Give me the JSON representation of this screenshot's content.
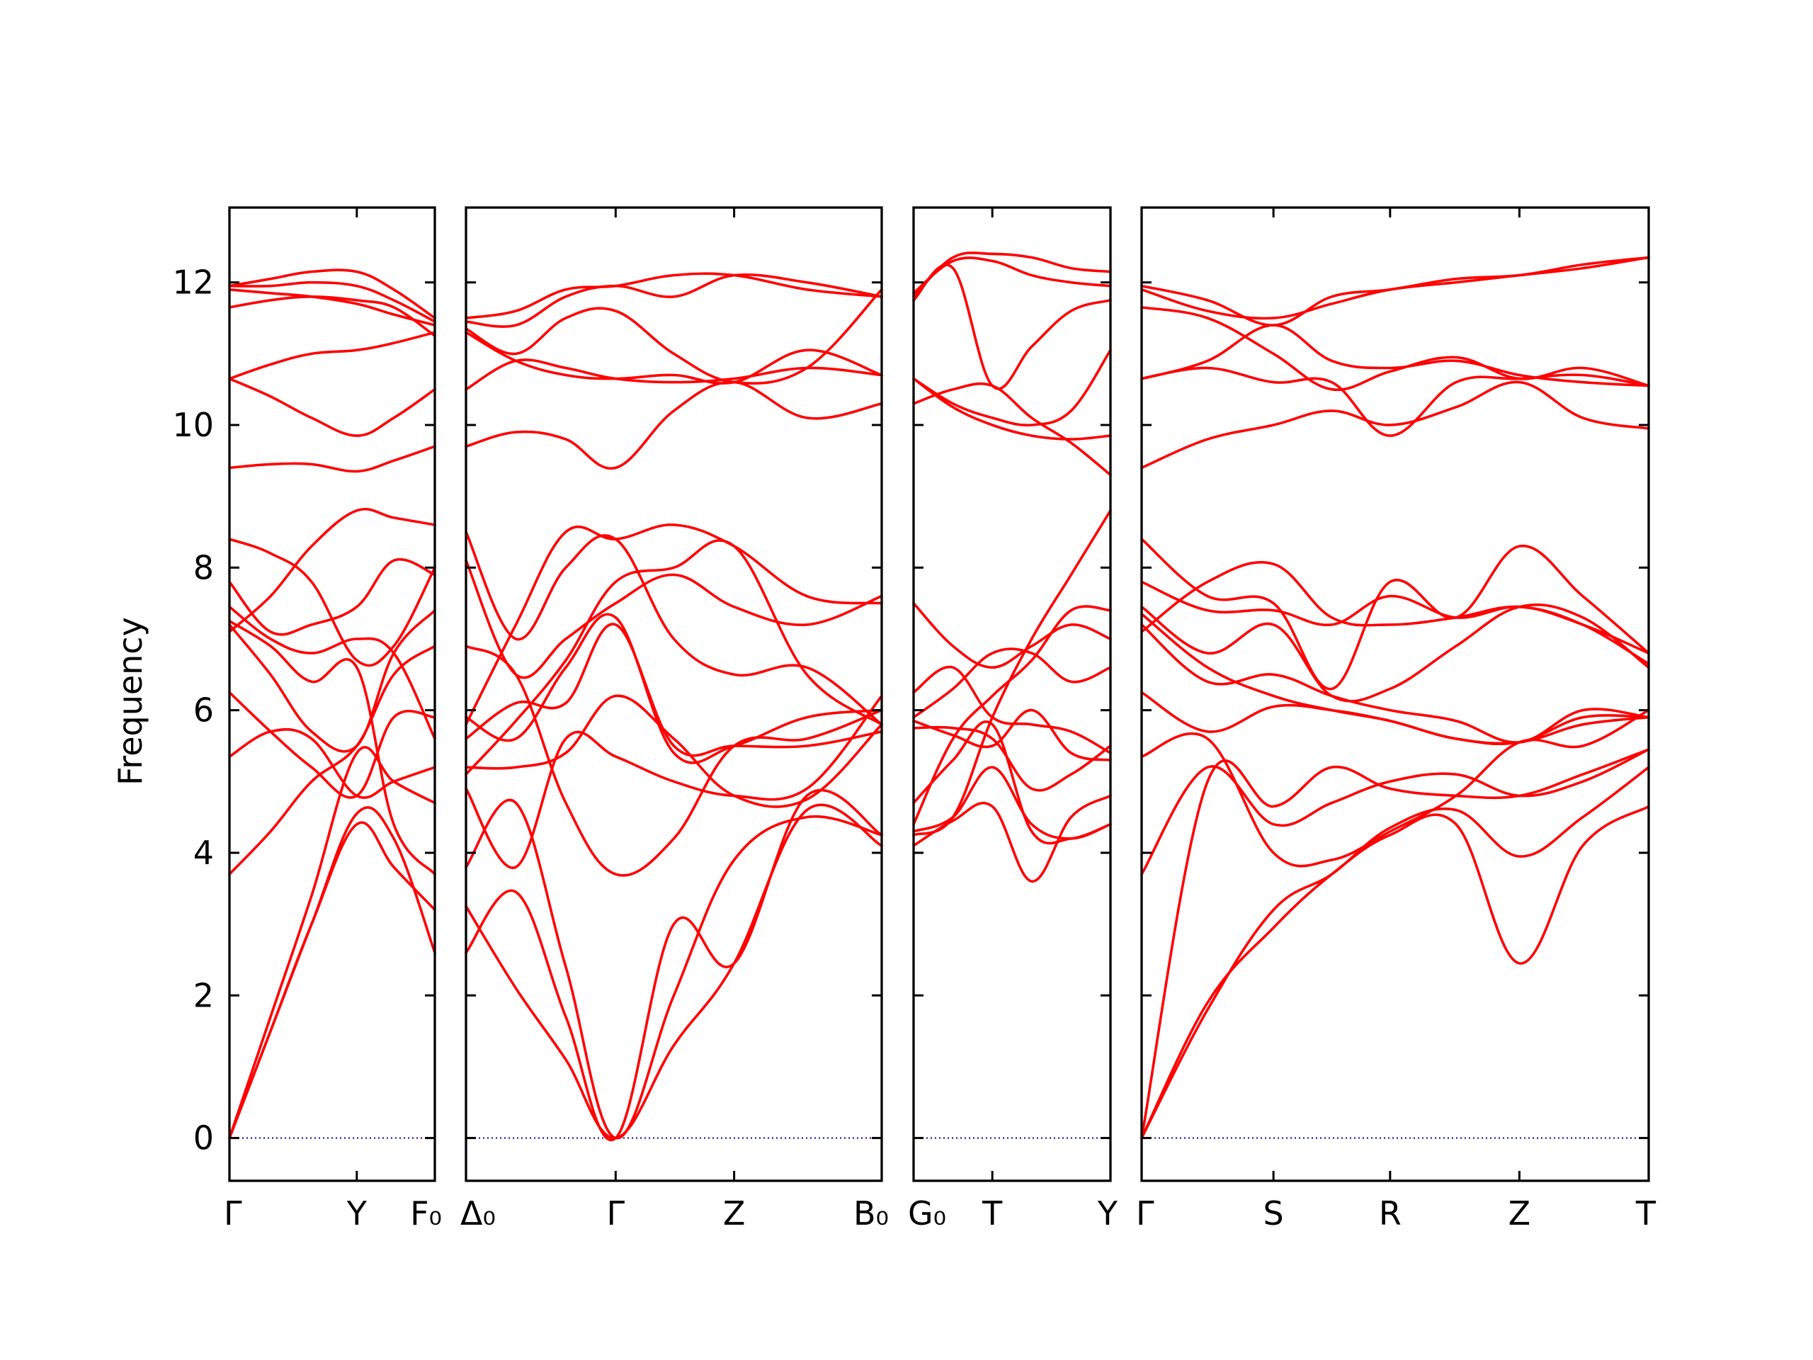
{
  "chart_data": {
    "type": "line",
    "ylabel": "Frequency",
    "ylim": [
      -0.6,
      13.05
    ],
    "yticks": [
      0,
      2,
      4,
      6,
      8,
      10,
      12
    ],
    "band_color": "#ff0000",
    "zero_line_color": "#0000cc",
    "panels": [
      {
        "xrange": [
          0,
          1
        ],
        "points": [
          {
            "x": 0,
            "label": "Γ"
          },
          {
            "x": 0.62,
            "label": "Y"
          },
          {
            "x": 1,
            "label": "F₀"
          }
        ],
        "x": [
          0,
          0.2,
          0.4,
          0.62,
          0.8,
          1.0
        ],
        "bands": [
          [
            0,
            1.5,
            3.0,
            4.55,
            4.2,
            2.6
          ],
          [
            0,
            1.5,
            3.0,
            4.4,
            3.8,
            3.2
          ],
          [
            0,
            1.7,
            3.4,
            5.4,
            5.0,
            4.7
          ],
          [
            3.7,
            4.3,
            5.0,
            5.5,
            6.5,
            6.9
          ],
          [
            5.35,
            5.7,
            5.6,
            4.8,
            5.0,
            5.2
          ],
          [
            6.25,
            5.7,
            5.2,
            4.8,
            5.9,
            5.9
          ],
          [
            7.2,
            6.5,
            5.7,
            5.5,
            6.8,
            7.4
          ],
          [
            7.25,
            6.9,
            6.4,
            6.6,
            4.4,
            3.7
          ],
          [
            7.45,
            7.0,
            6.8,
            7.0,
            6.8,
            5.6
          ],
          [
            7.8,
            7.1,
            7.2,
            7.45,
            8.1,
            7.9
          ],
          [
            8.4,
            8.2,
            7.8,
            6.7,
            6.9,
            8.0
          ],
          [
            7.1,
            7.6,
            8.3,
            8.8,
            8.7,
            8.6
          ],
          [
            9.4,
            9.45,
            9.45,
            9.35,
            9.5,
            9.7
          ],
          [
            10.65,
            10.4,
            10.1,
            9.85,
            10.1,
            10.5
          ],
          [
            10.65,
            10.85,
            11.0,
            11.05,
            11.15,
            11.3
          ],
          [
            11.65,
            11.75,
            11.8,
            11.75,
            11.65,
            11.25
          ],
          [
            11.9,
            11.85,
            11.8,
            11.7,
            11.55,
            11.4
          ],
          [
            11.95,
            11.95,
            12.0,
            11.95,
            11.75,
            11.45
          ],
          [
            11.95,
            12.05,
            12.15,
            12.15,
            11.9,
            11.5
          ]
        ]
      },
      {
        "xrange": [
          0,
          1
        ],
        "points": [
          {
            "x": 0,
            "label": "Δ₀"
          },
          {
            "x": 0.36,
            "label": "Γ"
          },
          {
            "x": 0.645,
            "label": "Z"
          },
          {
            "x": 1,
            "label": "B₀"
          }
        ],
        "x": [
          0,
          0.12,
          0.24,
          0.36,
          0.5,
          0.645,
          0.82,
          1.0
        ],
        "bands": [
          [
            2.6,
            3.45,
            1.7,
            0,
            3.0,
            2.45,
            4.8,
            4.25
          ],
          [
            3.25,
            2.1,
            1.1,
            0,
            1.3,
            2.45,
            4.6,
            4.1
          ],
          [
            3.8,
            4.7,
            2.4,
            0,
            2.0,
            3.9,
            4.5,
            4.25
          ],
          [
            4.9,
            3.8,
            5.6,
            5.35,
            5.0,
            4.8,
            4.9,
            6.2
          ],
          [
            5.2,
            5.2,
            5.4,
            6.2,
            5.6,
            4.8,
            4.75,
            5.8
          ],
          [
            5.6,
            6.1,
            6.1,
            7.2,
            5.5,
            5.5,
            5.5,
            5.7
          ],
          [
            5.9,
            5.6,
            6.6,
            7.3,
            5.4,
            5.5,
            5.9,
            6.0
          ],
          [
            6.9,
            6.5,
            4.7,
            3.7,
            4.2,
            5.5,
            5.6,
            6.0
          ],
          [
            8.1,
            6.5,
            7.0,
            7.5,
            7.9,
            7.45,
            7.2,
            7.6
          ],
          [
            8.5,
            7.0,
            8.0,
            8.4,
            7.0,
            6.5,
            6.6,
            5.8
          ],
          [
            5.1,
            5.85,
            6.7,
            7.8,
            8.0,
            8.3,
            6.5,
            5.8
          ],
          [
            5.8,
            7.2,
            8.5,
            8.4,
            8.6,
            8.3,
            7.6,
            7.5
          ],
          [
            9.7,
            9.9,
            9.8,
            9.4,
            10.2,
            10.6,
            10.1,
            10.3
          ],
          [
            10.5,
            10.9,
            10.8,
            10.65,
            10.6,
            10.65,
            10.8,
            10.7
          ],
          [
            11.3,
            10.9,
            10.7,
            10.65,
            10.7,
            10.6,
            11.05,
            10.7
          ],
          [
            11.35,
            11.0,
            11.5,
            11.6,
            11.0,
            10.6,
            10.8,
            11.9
          ],
          [
            11.45,
            11.4,
            11.8,
            11.95,
            11.8,
            12.1,
            12.0,
            11.8
          ],
          [
            11.5,
            11.6,
            11.9,
            11.95,
            12.1,
            12.1,
            11.9,
            11.8
          ]
        ]
      },
      {
        "xrange": [
          0,
          1
        ],
        "points": [
          {
            "x": 0,
            "label": "G₀"
          },
          {
            "x": 0.4,
            "label": "T"
          },
          {
            "x": 1,
            "label": "Y"
          }
        ],
        "x": [
          0,
          0.2,
          0.4,
          0.6,
          0.8,
          1.0
        ],
        "bands": [
          [
            4.1,
            4.45,
            4.65,
            3.6,
            4.5,
            4.8
          ],
          [
            4.3,
            4.5,
            5.2,
            4.4,
            4.2,
            4.4
          ],
          [
            4.7,
            5.3,
            5.8,
            4.3,
            4.2,
            4.4
          ],
          [
            5.75,
            5.75,
            5.6,
            4.9,
            5.1,
            5.5
          ],
          [
            5.85,
            5.65,
            5.5,
            6.0,
            5.4,
            5.3
          ],
          [
            6.25,
            6.6,
            5.9,
            5.8,
            5.7,
            5.4
          ],
          [
            5.9,
            6.3,
            6.8,
            6.8,
            6.4,
            6.6
          ],
          [
            7.5,
            6.9,
            6.6,
            6.9,
            7.2,
            7.0
          ],
          [
            4.4,
            5.6,
            6.2,
            6.7,
            7.4,
            7.4
          ],
          [
            4.25,
            4.5,
            5.9,
            7.0,
            7.9,
            8.8
          ],
          [
            10.3,
            10.5,
            10.55,
            10.1,
            9.75,
            9.3
          ],
          [
            10.65,
            10.25,
            10.0,
            9.85,
            9.8,
            9.85
          ],
          [
            10.65,
            10.3,
            10.1,
            10.0,
            10.2,
            11.05
          ],
          [
            11.75,
            12.2,
            10.55,
            11.1,
            11.6,
            11.75
          ],
          [
            11.85,
            12.3,
            12.3,
            12.1,
            12.0,
            11.95
          ],
          [
            11.8,
            12.35,
            12.4,
            12.35,
            12.2,
            12.15
          ]
        ]
      },
      {
        "xrange": [
          0,
          1
        ],
        "points": [
          {
            "x": 0,
            "label": "Γ"
          },
          {
            "x": 0.26,
            "label": "S"
          },
          {
            "x": 0.49,
            "label": "R"
          },
          {
            "x": 0.745,
            "label": "Z"
          },
          {
            "x": 1,
            "label": "T"
          }
        ],
        "x": [
          0,
          0.13,
          0.26,
          0.375,
          0.49,
          0.62,
          0.745,
          0.87,
          1.0
        ],
        "bands": [
          [
            0,
            1.9,
            2.95,
            3.7,
            4.25,
            4.4,
            2.45,
            4.1,
            4.65
          ],
          [
            0,
            1.8,
            3.2,
            3.7,
            4.35,
            4.6,
            3.95,
            4.5,
            5.2
          ],
          [
            0,
            5.0,
            4.65,
            5.2,
            4.9,
            4.8,
            4.8,
            5.1,
            5.45
          ],
          [
            3.7,
            5.2,
            4.4,
            4.7,
            5.0,
            5.1,
            4.8,
            5.0,
            5.45
          ],
          [
            5.35,
            5.6,
            4.0,
            3.9,
            4.3,
            4.8,
            5.55,
            5.5,
            6.0
          ],
          [
            6.25,
            5.7,
            6.05,
            6.0,
            5.85,
            5.6,
            5.55,
            5.8,
            5.9
          ],
          [
            7.2,
            6.4,
            6.5,
            6.2,
            6.0,
            5.85,
            5.55,
            6.0,
            5.9
          ],
          [
            7.35,
            6.6,
            6.2,
            6.0,
            5.85,
            5.6,
            5.55,
            5.9,
            5.9
          ],
          [
            7.45,
            6.8,
            7.2,
            6.2,
            6.3,
            6.9,
            7.45,
            7.3,
            6.6
          ],
          [
            7.8,
            7.4,
            7.4,
            7.2,
            7.6,
            7.3,
            7.45,
            7.2,
            6.8
          ],
          [
            8.4,
            7.6,
            7.5,
            6.3,
            7.8,
            7.3,
            8.3,
            7.6,
            6.8
          ],
          [
            7.1,
            7.8,
            8.05,
            7.3,
            7.2,
            7.3,
            7.45,
            7.2,
            6.65
          ],
          [
            9.4,
            9.8,
            10.0,
            10.2,
            10.0,
            10.25,
            10.6,
            10.1,
            9.95
          ],
          [
            10.65,
            10.8,
            10.6,
            10.6,
            9.85,
            10.6,
            10.65,
            10.7,
            10.55
          ],
          [
            10.65,
            10.9,
            11.4,
            10.9,
            10.8,
            10.9,
            10.7,
            10.6,
            10.55
          ],
          [
            11.65,
            11.5,
            11.0,
            10.5,
            10.75,
            10.95,
            10.65,
            10.8,
            10.55
          ],
          [
            11.9,
            11.6,
            11.5,
            11.7,
            11.9,
            12.0,
            12.1,
            12.2,
            12.35
          ],
          [
            11.95,
            11.75,
            11.4,
            11.8,
            11.9,
            12.05,
            12.1,
            12.25,
            12.35
          ]
        ]
      }
    ]
  }
}
